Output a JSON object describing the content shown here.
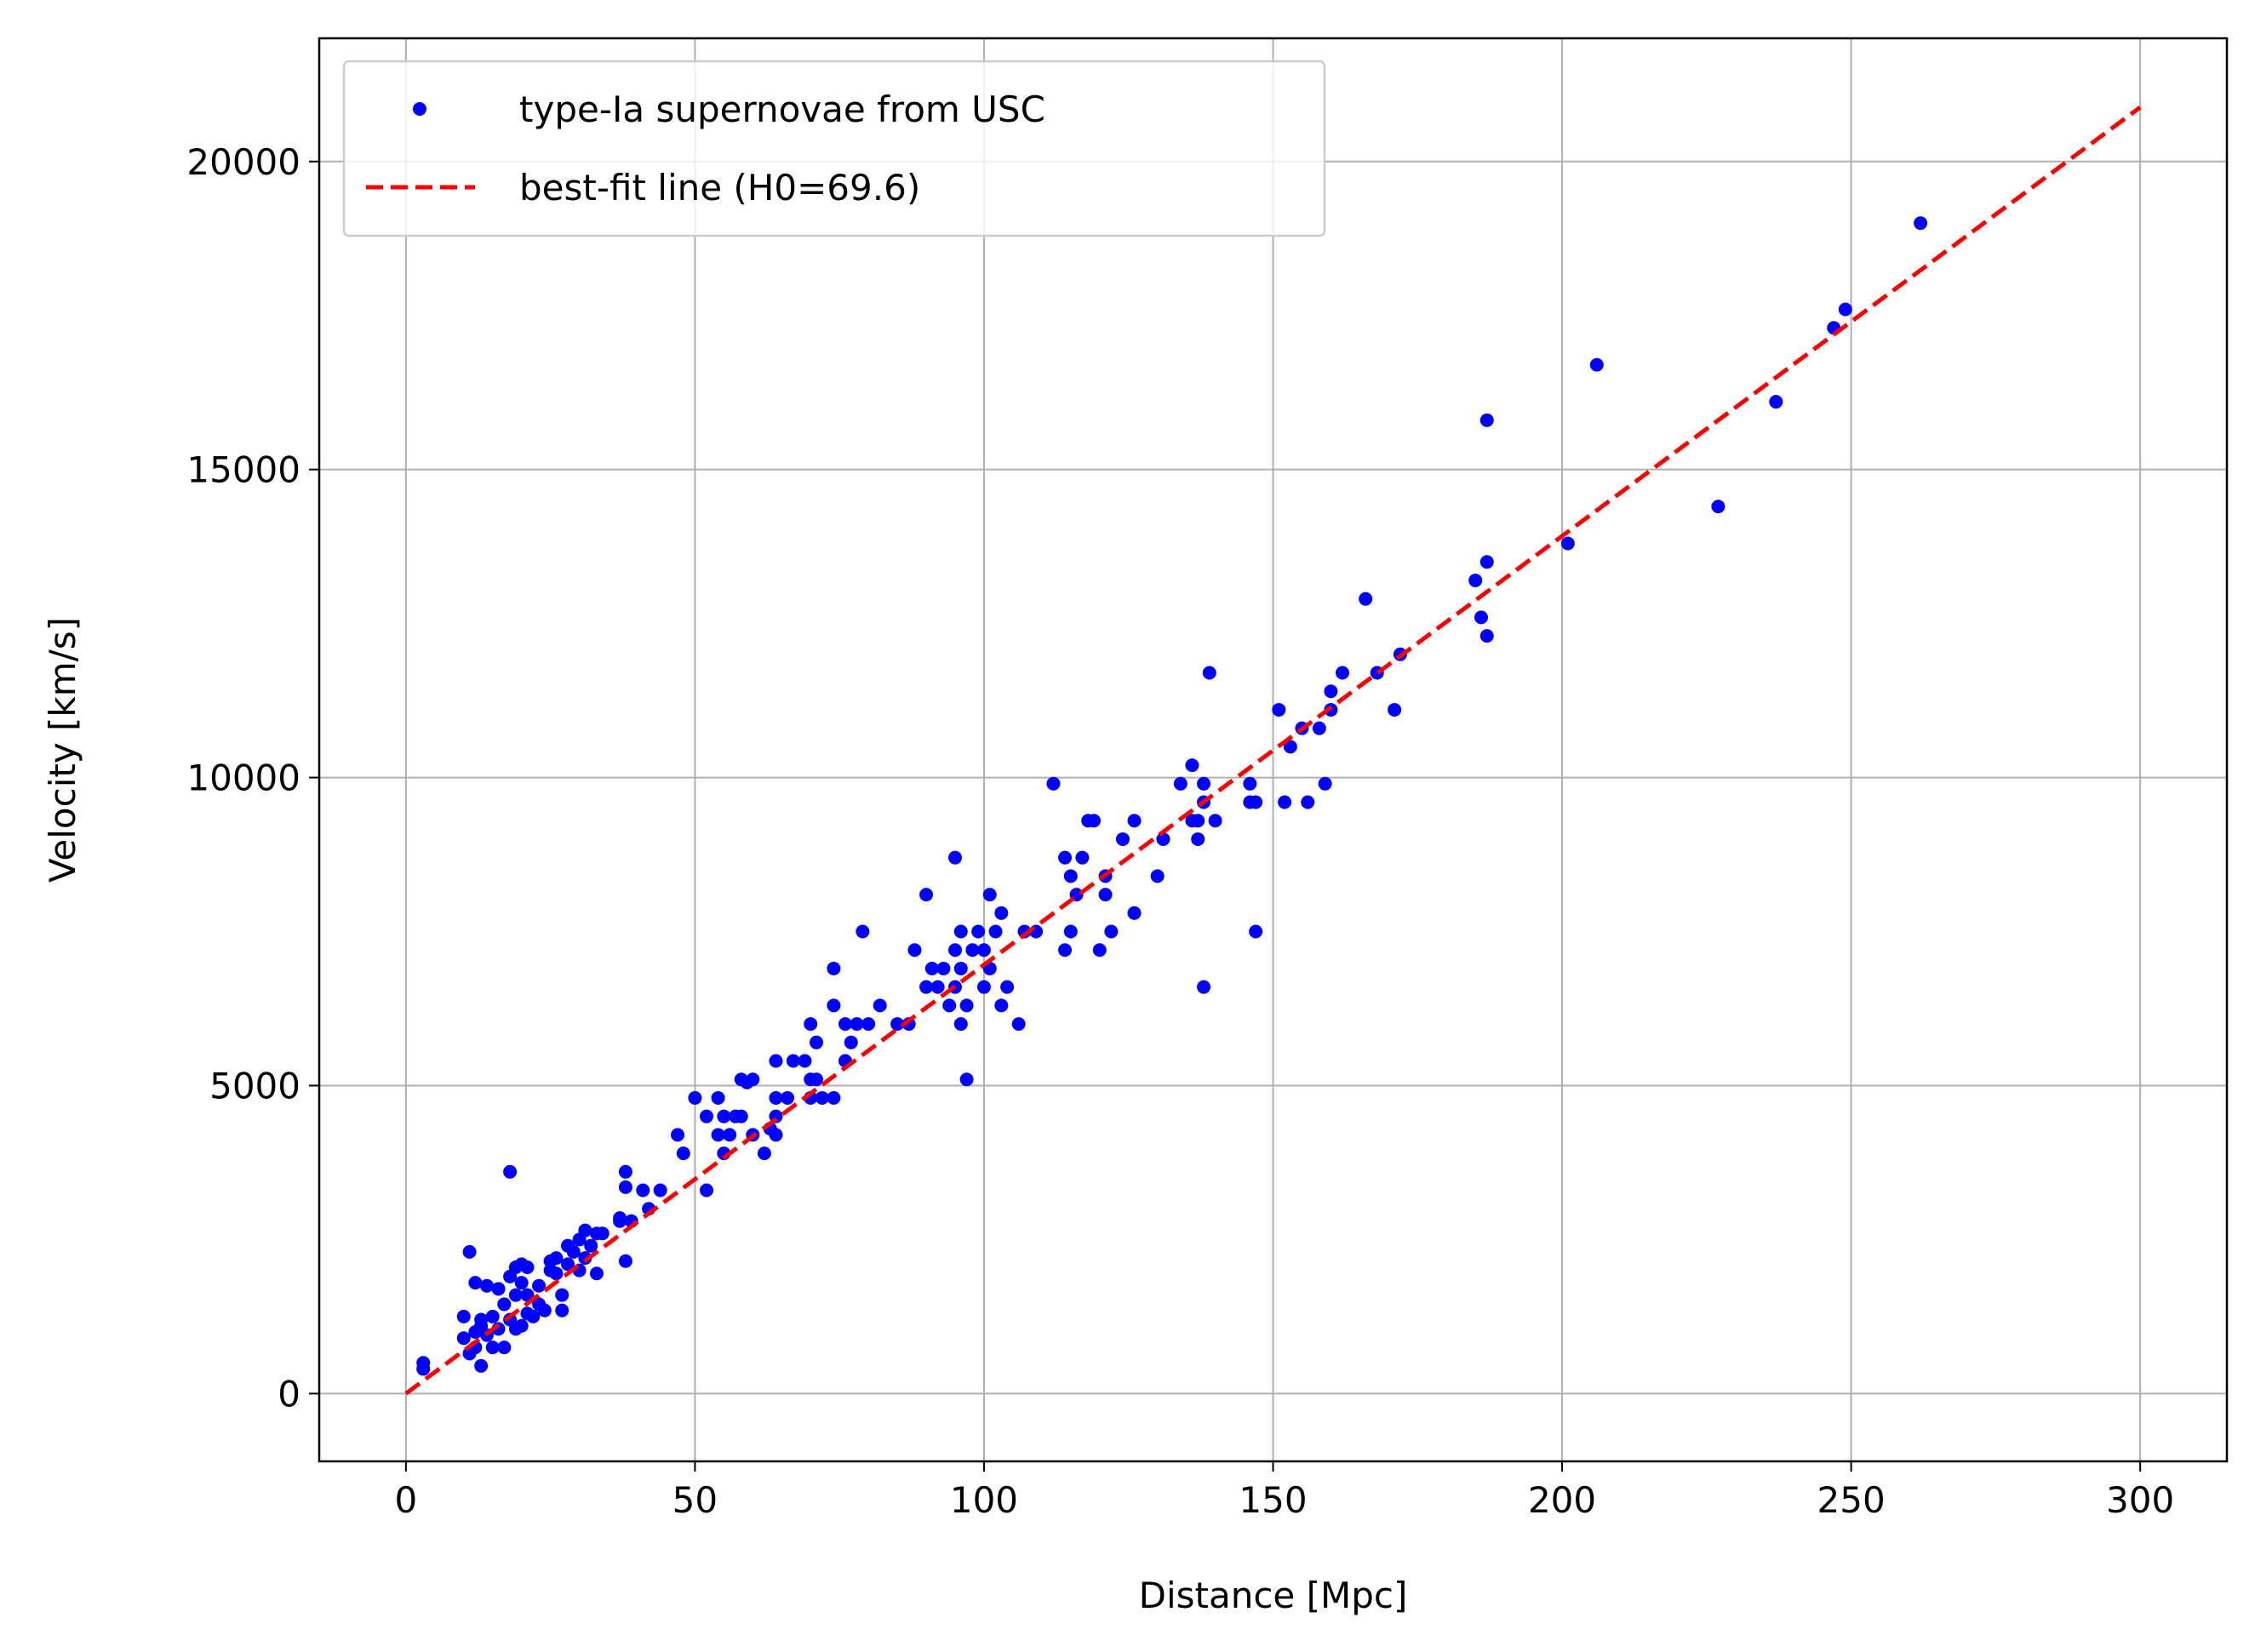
{
  "chart_data": {
    "type": "scatter",
    "xlabel": "Distance [Mpc]",
    "ylabel": "Velocity [km/s]",
    "xlim": [
      -15,
      315
    ],
    "ylim": [
      -1100,
      22000
    ],
    "x_ticks": [
      0,
      50,
      100,
      150,
      200,
      250,
      300
    ],
    "y_ticks": [
      0,
      5000,
      10000,
      15000,
      20000
    ],
    "grid": true,
    "legend_position": "top-left",
    "colors": {
      "points": "#0000ff",
      "fit_line": "#ff0000",
      "grid": "#b0b0b0"
    },
    "series": [
      {
        "name": "type-Ia supernovae from USC",
        "kind": "points",
        "points": [
          [
            3,
            500
          ],
          [
            3,
            400
          ],
          [
            10,
            1250
          ],
          [
            10,
            900
          ],
          [
            11,
            2300
          ],
          [
            11,
            650
          ],
          [
            12,
            1000
          ],
          [
            12,
            750
          ],
          [
            12,
            1800
          ],
          [
            13,
            1200
          ],
          [
            13,
            450
          ],
          [
            13,
            1100
          ],
          [
            14,
            1750
          ],
          [
            14,
            950
          ],
          [
            15,
            750
          ],
          [
            15,
            1250
          ],
          [
            16,
            1050
          ],
          [
            16,
            1700
          ],
          [
            17,
            750
          ],
          [
            17,
            1450
          ],
          [
            18,
            1900
          ],
          [
            18,
            1200
          ],
          [
            18,
            3600
          ],
          [
            19,
            2050
          ],
          [
            19,
            1600
          ],
          [
            19,
            1050
          ],
          [
            20,
            1100
          ],
          [
            20,
            1800
          ],
          [
            20,
            2100
          ],
          [
            21,
            2050
          ],
          [
            21,
            1600
          ],
          [
            21,
            1300
          ],
          [
            22,
            1250
          ],
          [
            23,
            1750
          ],
          [
            23,
            1450
          ],
          [
            24,
            1350
          ],
          [
            25,
            2150
          ],
          [
            25,
            2000
          ],
          [
            26,
            2200
          ],
          [
            26,
            1950
          ],
          [
            27,
            1350
          ],
          [
            27,
            1600
          ],
          [
            28,
            2400
          ],
          [
            28,
            2100
          ],
          [
            29,
            2300
          ],
          [
            30,
            2000
          ],
          [
            30,
            2500
          ],
          [
            31,
            2650
          ],
          [
            31,
            2200
          ],
          [
            32,
            2400
          ],
          [
            33,
            1950
          ],
          [
            33,
            2600
          ],
          [
            34,
            2600
          ],
          [
            37,
            2850
          ],
          [
            37,
            2800
          ],
          [
            38,
            3350
          ],
          [
            38,
            3600
          ],
          [
            38,
            2150
          ],
          [
            39,
            2800
          ],
          [
            41,
            3300
          ],
          [
            42,
            3000
          ],
          [
            44,
            3300
          ],
          [
            47,
            4200
          ],
          [
            48,
            3900
          ],
          [
            50,
            4800
          ],
          [
            52,
            3300
          ],
          [
            52,
            4500
          ],
          [
            54,
            4800
          ],
          [
            54,
            4200
          ],
          [
            55,
            3900
          ],
          [
            55,
            4500
          ],
          [
            56,
            4200
          ],
          [
            57,
            4500
          ],
          [
            58,
            5100
          ],
          [
            58,
            4500
          ],
          [
            59,
            5050
          ],
          [
            60,
            5100
          ],
          [
            60,
            4200
          ],
          [
            62,
            3900
          ],
          [
            63,
            4300
          ],
          [
            64,
            4800
          ],
          [
            64,
            4500
          ],
          [
            64,
            5400
          ],
          [
            64,
            4200
          ],
          [
            66,
            4800
          ],
          [
            67,
            5400
          ],
          [
            69,
            5400
          ],
          [
            70,
            5100
          ],
          [
            70,
            4800
          ],
          [
            70,
            6000
          ],
          [
            71,
            5700
          ],
          [
            71,
            5100
          ],
          [
            72,
            4800
          ],
          [
            74,
            4800
          ],
          [
            74,
            6300
          ],
          [
            74,
            6900
          ],
          [
            76,
            5400
          ],
          [
            76,
            6000
          ],
          [
            77,
            5700
          ],
          [
            78,
            6000
          ],
          [
            79,
            7500
          ],
          [
            80,
            6000
          ],
          [
            82,
            6300
          ],
          [
            85,
            6000
          ],
          [
            87,
            6000
          ],
          [
            88,
            7200
          ],
          [
            90,
            8100
          ],
          [
            90,
            6600
          ],
          [
            91,
            6900
          ],
          [
            92,
            6600
          ],
          [
            93,
            6900
          ],
          [
            94,
            6300
          ],
          [
            95,
            8700
          ],
          [
            95,
            6600
          ],
          [
            95,
            7200
          ],
          [
            96,
            6900
          ],
          [
            96,
            7500
          ],
          [
            96,
            6000
          ],
          [
            97,
            5100
          ],
          [
            97,
            6300
          ],
          [
            98,
            7200
          ],
          [
            99,
            7500
          ],
          [
            100,
            6600
          ],
          [
            100,
            7200
          ],
          [
            101,
            6900
          ],
          [
            101,
            8100
          ],
          [
            102,
            7500
          ],
          [
            103,
            7800
          ],
          [
            103,
            6300
          ],
          [
            104,
            6600
          ],
          [
            106,
            6000
          ],
          [
            107,
            7500
          ],
          [
            109,
            7500
          ],
          [
            112,
            9900
          ],
          [
            114,
            7200
          ],
          [
            114,
            8700
          ],
          [
            115,
            7500
          ],
          [
            115,
            8400
          ],
          [
            116,
            8100
          ],
          [
            117,
            8700
          ],
          [
            118,
            9300
          ],
          [
            119,
            9300
          ],
          [
            120,
            7200
          ],
          [
            121,
            8400
          ],
          [
            121,
            8100
          ],
          [
            122,
            7500
          ],
          [
            124,
            9000
          ],
          [
            126,
            7800
          ],
          [
            126,
            9300
          ],
          [
            130,
            8400
          ],
          [
            131,
            9000
          ],
          [
            134,
            9900
          ],
          [
            136,
            10200
          ],
          [
            136,
            9300
          ],
          [
            137,
            9300
          ],
          [
            137,
            9000
          ],
          [
            138,
            9600
          ],
          [
            138,
            9900
          ],
          [
            138,
            6600
          ],
          [
            139,
            11700
          ],
          [
            140,
            9300
          ],
          [
            146,
            9900
          ],
          [
            146,
            9600
          ],
          [
            147,
            9600
          ],
          [
            147,
            7500
          ],
          [
            151,
            11100
          ],
          [
            152,
            9600
          ],
          [
            153,
            10500
          ],
          [
            155,
            10800
          ],
          [
            156,
            9600
          ],
          [
            158,
            10800
          ],
          [
            159,
            9900
          ],
          [
            160,
            11400
          ],
          [
            160,
            11100
          ],
          [
            162,
            11700
          ],
          [
            166,
            12900
          ],
          [
            168,
            11700
          ],
          [
            171,
            11100
          ],
          [
            172,
            12000
          ],
          [
            185,
            13200
          ],
          [
            186,
            12600
          ],
          [
            187,
            12300
          ],
          [
            187,
            13500
          ],
          [
            187,
            15800
          ],
          [
            201,
            13800
          ],
          [
            206,
            16700
          ],
          [
            227,
            14400
          ],
          [
            237,
            16100
          ],
          [
            247,
            17300
          ],
          [
            249,
            17600
          ],
          [
            262,
            19000
          ]
        ]
      },
      {
        "name": "best-fit line (H0=69.6)",
        "kind": "line",
        "x": [
          0,
          300
        ],
        "y": [
          0,
          20880
        ]
      }
    ]
  }
}
